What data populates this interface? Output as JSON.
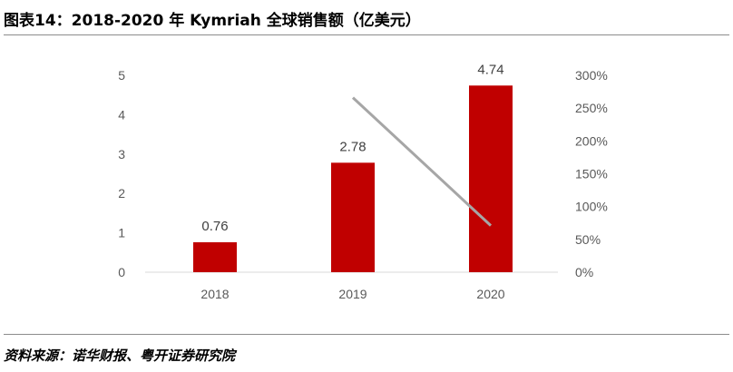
{
  "figure": {
    "title": "图表14：2018-2020 年 Kymriah 全球销售额（亿美元）",
    "source": "资料来源：诺华财报、粤开证券研究院"
  },
  "chart_data": {
    "type": "bar",
    "categories": [
      "2018",
      "2019",
      "2020"
    ],
    "series": [
      {
        "values": [
          0.76,
          2.78,
          4.74
        ],
        "color": "#c00000",
        "axis": "left"
      },
      {
        "values": [
          null,
          266,
          71
        ],
        "color": "#a6a6a6",
        "axis": "right",
        "type": "line",
        "unit": "%"
      }
    ],
    "data_labels": [
      "0.76",
      "2.78",
      "4.74"
    ],
    "ylim_left": [
      0,
      5
    ],
    "yticks_left": [
      "0",
      "1",
      "2",
      "3",
      "4",
      "5"
    ],
    "ylim_right": [
      0,
      300
    ],
    "yticks_right": [
      "0%",
      "50%",
      "100%",
      "150%",
      "200%",
      "250%",
      "300%"
    ],
    "grid": false,
    "legend": "none"
  }
}
